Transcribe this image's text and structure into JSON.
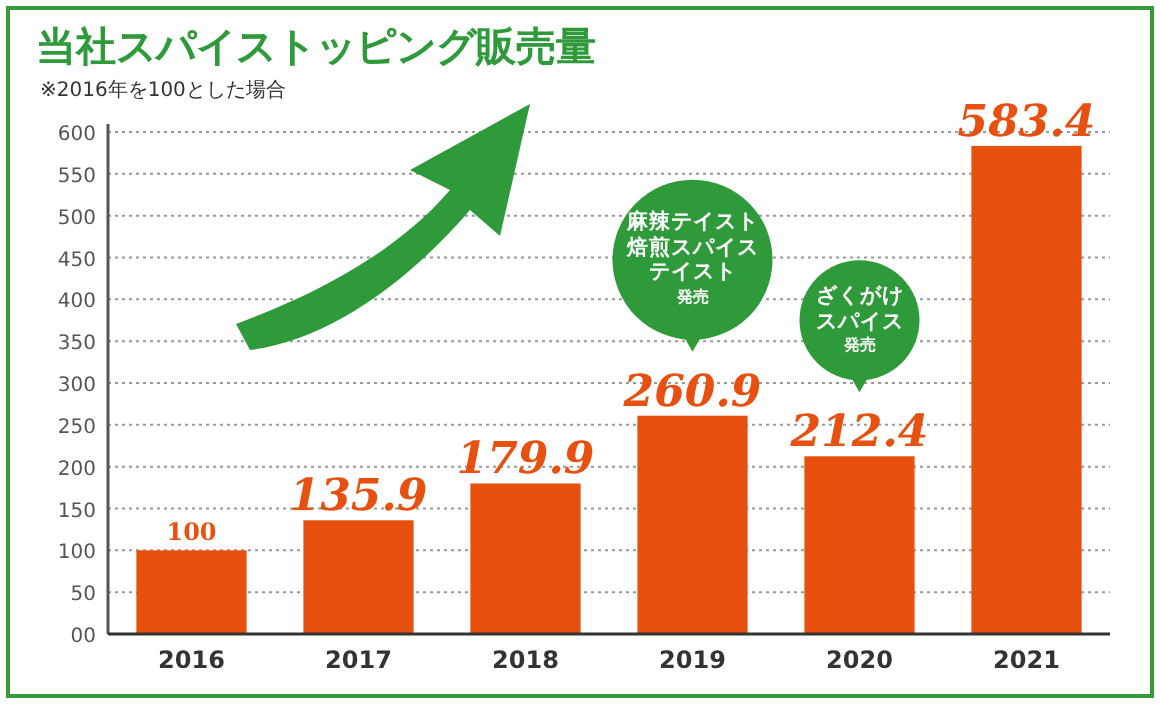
{
  "chart_data": {
    "type": "bar",
    "title": "当社スパイストッピング販売量",
    "subtitle": "※2016年を100とした場合",
    "categories": [
      "2016",
      "2017",
      "2018",
      "2019",
      "2020",
      "2021"
    ],
    "values": [
      100,
      135.9,
      179.9,
      260.9,
      212.4,
      583.4
    ],
    "value_labels": [
      "100",
      "135.9",
      "179.9",
      "260.9",
      "212.4",
      "583.4"
    ],
    "color": "#e8500f",
    "ylim": [
      0,
      600
    ],
    "yticks": [
      {
        "value": 0,
        "label": "00"
      },
      50,
      100,
      150,
      200,
      250,
      300,
      350,
      400,
      450,
      500,
      550,
      600
    ],
    "grid": "y",
    "annotations": [
      "麻辣テイスト焙煎スパイステイスト",
      "発売",
      "ざくがけスパイス",
      "発売"
    ]
  }
}
